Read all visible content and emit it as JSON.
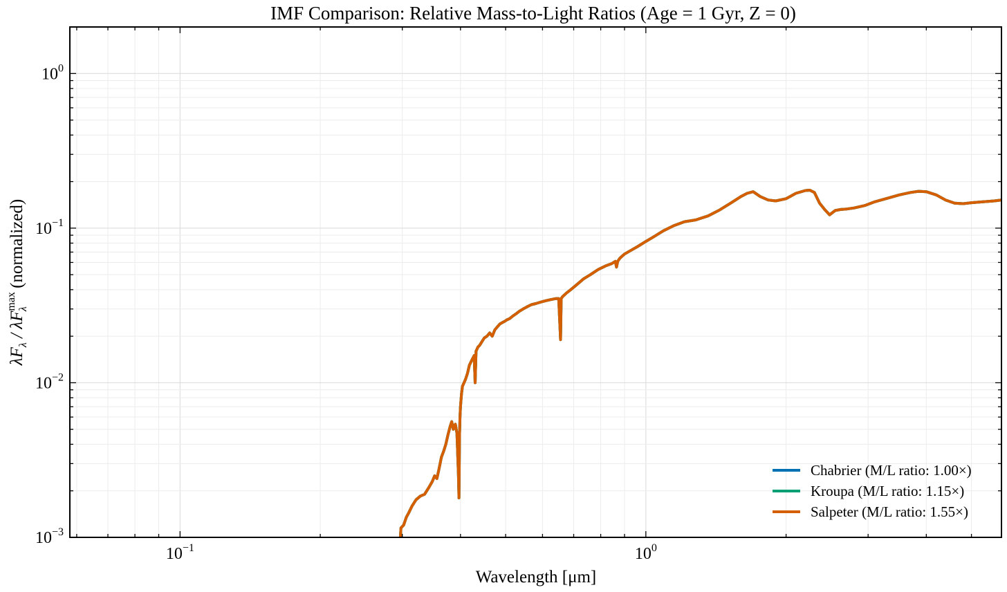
{
  "chart_data": {
    "type": "line",
    "title": "IMF Comparison: Relative Mass-to-Light Ratios (Age = 1 Gyr, Z = 0)",
    "xlabel": "Wavelength [μm]",
    "ylabel": {
      "prefix": "λF",
      "sub1": "λ",
      "mid": " / λF",
      "sup": "max",
      "sub2": "λ",
      "suffix": " (normalized)"
    },
    "xscale": "log",
    "yscale": "log",
    "xlim": [
      0.058,
      5.8
    ],
    "ylim": [
      0.001,
      2.0
    ],
    "grid": true,
    "legend_position": "lower-right",
    "xticks": [
      {
        "value": 0.1,
        "base": "10",
        "exp": "−1"
      },
      {
        "value": 1.0,
        "base": "10",
        "exp": "0"
      }
    ],
    "yticks": [
      {
        "value": 0.001,
        "base": "10",
        "exp": "−3"
      },
      {
        "value": 0.01,
        "base": "10",
        "exp": "−2"
      },
      {
        "value": 0.1,
        "base": "10",
        "exp": "−1"
      },
      {
        "value": 1.0,
        "base": "10",
        "exp": "0"
      }
    ],
    "series": [
      {
        "name": "Chabrier (M/L ratio: 1.00×)",
        "color": "#0072b2",
        "x": [
          0.297,
          0.298,
          0.302,
          0.306,
          0.31,
          0.315,
          0.321,
          0.328,
          0.335,
          0.342,
          0.348,
          0.352,
          0.356,
          0.36,
          0.364,
          0.368,
          0.372,
          0.376,
          0.38,
          0.383,
          0.386,
          0.39,
          0.393,
          0.396,
          0.397,
          0.398,
          0.399,
          0.4,
          0.402,
          0.404,
          0.407,
          0.41,
          0.414,
          0.418,
          0.423,
          0.428,
          0.43,
          0.432,
          0.436,
          0.44,
          0.445,
          0.45,
          0.456,
          0.462,
          0.468,
          0.474,
          0.48,
          0.486,
          0.492,
          0.498,
          0.503,
          0.51,
          0.518,
          0.527,
          0.535,
          0.545,
          0.556,
          0.568,
          0.58,
          0.59,
          0.6,
          0.612,
          0.625,
          0.64,
          0.65,
          0.656,
          0.658,
          0.662,
          0.675,
          0.69,
          0.71,
          0.735,
          0.76,
          0.79,
          0.82,
          0.845,
          0.86,
          0.865,
          0.87,
          0.88,
          0.9,
          0.93,
          0.96,
          1.0,
          1.04,
          1.09,
          1.15,
          1.21,
          1.28,
          1.36,
          1.44,
          1.52,
          1.6,
          1.65,
          1.7,
          1.76,
          1.83,
          1.9,
          2.0,
          2.1,
          2.2,
          2.25,
          2.3,
          2.36,
          2.42,
          2.48,
          2.55,
          2.62,
          2.7,
          2.8,
          2.95,
          3.1,
          3.3,
          3.5,
          3.7,
          3.85,
          4.0,
          4.2,
          4.4,
          4.6,
          4.8,
          5.0,
          5.3,
          5.6,
          5.8
        ],
        "y": [
          0.00095,
          0.00115,
          0.0012,
          0.00135,
          0.00145,
          0.0016,
          0.00175,
          0.00185,
          0.0019,
          0.0021,
          0.0023,
          0.0025,
          0.0024,
          0.0028,
          0.0033,
          0.0036,
          0.004,
          0.0046,
          0.0052,
          0.0056,
          0.005,
          0.0054,
          0.0047,
          0.0025,
          0.0018,
          0.0045,
          0.006,
          0.007,
          0.0085,
          0.0095,
          0.01,
          0.0105,
          0.0115,
          0.013,
          0.014,
          0.015,
          0.01,
          0.016,
          0.017,
          0.0175,
          0.0185,
          0.0195,
          0.02,
          0.021,
          0.02,
          0.022,
          0.023,
          0.024,
          0.0245,
          0.025,
          0.0255,
          0.026,
          0.027,
          0.028,
          0.029,
          0.03,
          0.031,
          0.032,
          0.0325,
          0.033,
          0.0335,
          0.034,
          0.0345,
          0.035,
          0.035,
          0.019,
          0.035,
          0.036,
          0.038,
          0.04,
          0.043,
          0.047,
          0.05,
          0.054,
          0.057,
          0.059,
          0.061,
          0.056,
          0.061,
          0.064,
          0.068,
          0.072,
          0.076,
          0.082,
          0.088,
          0.096,
          0.104,
          0.11,
          0.113,
          0.12,
          0.131,
          0.145,
          0.16,
          0.168,
          0.172,
          0.16,
          0.152,
          0.15,
          0.155,
          0.168,
          0.175,
          0.176,
          0.17,
          0.145,
          0.132,
          0.122,
          0.13,
          0.132,
          0.133,
          0.135,
          0.14,
          0.148,
          0.156,
          0.164,
          0.17,
          0.173,
          0.172,
          0.164,
          0.152,
          0.145,
          0.144,
          0.146,
          0.148,
          0.15,
          0.152
        ]
      },
      {
        "name": "Kroupa (M/L ratio: 1.15×)",
        "color": "#009e73",
        "x": [
          0.297,
          0.298,
          0.302,
          0.306,
          0.31,
          0.315,
          0.321,
          0.328,
          0.335,
          0.342,
          0.348,
          0.352,
          0.356,
          0.36,
          0.364,
          0.368,
          0.372,
          0.376,
          0.38,
          0.383,
          0.386,
          0.39,
          0.393,
          0.396,
          0.397,
          0.398,
          0.399,
          0.4,
          0.402,
          0.404,
          0.407,
          0.41,
          0.414,
          0.418,
          0.423,
          0.428,
          0.43,
          0.432,
          0.436,
          0.44,
          0.445,
          0.45,
          0.456,
          0.462,
          0.468,
          0.474,
          0.48,
          0.486,
          0.492,
          0.498,
          0.503,
          0.51,
          0.518,
          0.527,
          0.535,
          0.545,
          0.556,
          0.568,
          0.58,
          0.59,
          0.6,
          0.612,
          0.625,
          0.64,
          0.65,
          0.656,
          0.658,
          0.662,
          0.675,
          0.69,
          0.71,
          0.735,
          0.76,
          0.79,
          0.82,
          0.845,
          0.86,
          0.865,
          0.87,
          0.88,
          0.9,
          0.93,
          0.96,
          1.0,
          1.04,
          1.09,
          1.15,
          1.21,
          1.28,
          1.36,
          1.44,
          1.52,
          1.6,
          1.65,
          1.7,
          1.76,
          1.83,
          1.9,
          2.0,
          2.1,
          2.2,
          2.25,
          2.3,
          2.36,
          2.42,
          2.48,
          2.55,
          2.62,
          2.7,
          2.8,
          2.95,
          3.1,
          3.3,
          3.5,
          3.7,
          3.85,
          4.0,
          4.2,
          4.4,
          4.6,
          4.8,
          5.0,
          5.3,
          5.6,
          5.8
        ],
        "y": [
          0.00095,
          0.00115,
          0.0012,
          0.00135,
          0.00145,
          0.0016,
          0.00175,
          0.00185,
          0.0019,
          0.0021,
          0.0023,
          0.0025,
          0.0024,
          0.0028,
          0.0033,
          0.0036,
          0.004,
          0.0046,
          0.0052,
          0.0056,
          0.005,
          0.0054,
          0.0047,
          0.0025,
          0.0018,
          0.0045,
          0.006,
          0.007,
          0.0085,
          0.0095,
          0.01,
          0.0105,
          0.0115,
          0.013,
          0.014,
          0.015,
          0.01,
          0.016,
          0.017,
          0.0175,
          0.0185,
          0.0195,
          0.02,
          0.021,
          0.02,
          0.022,
          0.023,
          0.024,
          0.0245,
          0.025,
          0.0255,
          0.026,
          0.027,
          0.028,
          0.029,
          0.03,
          0.031,
          0.032,
          0.0325,
          0.033,
          0.0335,
          0.034,
          0.0345,
          0.035,
          0.035,
          0.019,
          0.035,
          0.036,
          0.038,
          0.04,
          0.043,
          0.047,
          0.05,
          0.054,
          0.057,
          0.059,
          0.061,
          0.056,
          0.061,
          0.064,
          0.068,
          0.072,
          0.076,
          0.082,
          0.088,
          0.096,
          0.104,
          0.11,
          0.113,
          0.12,
          0.131,
          0.145,
          0.16,
          0.168,
          0.172,
          0.16,
          0.152,
          0.15,
          0.155,
          0.168,
          0.175,
          0.176,
          0.17,
          0.145,
          0.132,
          0.122,
          0.13,
          0.132,
          0.133,
          0.135,
          0.14,
          0.148,
          0.156,
          0.164,
          0.17,
          0.173,
          0.172,
          0.164,
          0.152,
          0.145,
          0.144,
          0.146,
          0.148,
          0.15,
          0.152
        ]
      },
      {
        "name": "Salpeter (M/L ratio: 1.55×)",
        "color": "#d55e00",
        "x": [
          0.297,
          0.298,
          0.302,
          0.306,
          0.31,
          0.315,
          0.321,
          0.328,
          0.335,
          0.342,
          0.348,
          0.352,
          0.356,
          0.36,
          0.364,
          0.368,
          0.372,
          0.376,
          0.38,
          0.383,
          0.386,
          0.39,
          0.393,
          0.396,
          0.397,
          0.398,
          0.399,
          0.4,
          0.402,
          0.404,
          0.407,
          0.41,
          0.414,
          0.418,
          0.423,
          0.428,
          0.43,
          0.432,
          0.436,
          0.44,
          0.445,
          0.45,
          0.456,
          0.462,
          0.468,
          0.474,
          0.48,
          0.486,
          0.492,
          0.498,
          0.503,
          0.51,
          0.518,
          0.527,
          0.535,
          0.545,
          0.556,
          0.568,
          0.58,
          0.59,
          0.6,
          0.612,
          0.625,
          0.64,
          0.65,
          0.656,
          0.658,
          0.662,
          0.675,
          0.69,
          0.71,
          0.735,
          0.76,
          0.79,
          0.82,
          0.845,
          0.86,
          0.865,
          0.87,
          0.88,
          0.9,
          0.93,
          0.96,
          1.0,
          1.04,
          1.09,
          1.15,
          1.21,
          1.28,
          1.36,
          1.44,
          1.52,
          1.6,
          1.65,
          1.7,
          1.76,
          1.83,
          1.9,
          2.0,
          2.1,
          2.2,
          2.25,
          2.3,
          2.36,
          2.42,
          2.48,
          2.55,
          2.62,
          2.7,
          2.8,
          2.95,
          3.1,
          3.3,
          3.5,
          3.7,
          3.85,
          4.0,
          4.2,
          4.4,
          4.6,
          4.8,
          5.0,
          5.3,
          5.6,
          5.8
        ],
        "y": [
          0.00095,
          0.00115,
          0.0012,
          0.00135,
          0.00145,
          0.0016,
          0.00175,
          0.00185,
          0.0019,
          0.0021,
          0.0023,
          0.0025,
          0.0024,
          0.0028,
          0.0033,
          0.0036,
          0.004,
          0.0046,
          0.0052,
          0.0056,
          0.005,
          0.0054,
          0.0047,
          0.0025,
          0.0018,
          0.0045,
          0.006,
          0.007,
          0.0085,
          0.0095,
          0.01,
          0.0105,
          0.0115,
          0.013,
          0.014,
          0.015,
          0.01,
          0.016,
          0.017,
          0.0175,
          0.0185,
          0.0195,
          0.02,
          0.021,
          0.02,
          0.022,
          0.023,
          0.024,
          0.0245,
          0.025,
          0.0255,
          0.026,
          0.027,
          0.028,
          0.029,
          0.03,
          0.031,
          0.032,
          0.0325,
          0.033,
          0.0335,
          0.034,
          0.0345,
          0.035,
          0.035,
          0.019,
          0.035,
          0.036,
          0.038,
          0.04,
          0.043,
          0.047,
          0.05,
          0.054,
          0.057,
          0.059,
          0.061,
          0.056,
          0.061,
          0.064,
          0.068,
          0.072,
          0.076,
          0.082,
          0.088,
          0.096,
          0.104,
          0.11,
          0.113,
          0.12,
          0.131,
          0.145,
          0.16,
          0.168,
          0.172,
          0.16,
          0.152,
          0.15,
          0.155,
          0.168,
          0.175,
          0.176,
          0.17,
          0.145,
          0.132,
          0.122,
          0.13,
          0.132,
          0.133,
          0.135,
          0.14,
          0.148,
          0.156,
          0.164,
          0.17,
          0.173,
          0.172,
          0.164,
          0.152,
          0.145,
          0.144,
          0.146,
          0.148,
          0.15,
          0.152
        ]
      }
    ]
  }
}
